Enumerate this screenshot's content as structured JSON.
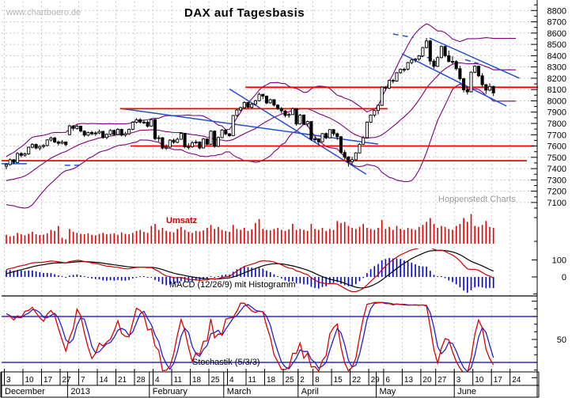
{
  "header": {
    "watermark": "www.chartbuero.de",
    "title": "DAX auf Tagesbasis",
    "provider": "Hoppenstedt Charts"
  },
  "labels": {
    "volume": "Umsatz",
    "macd": "MACD (12/26/9) mit Histogramm",
    "stochastic": "Stochastik (5/3/3)"
  },
  "colors": {
    "grid": "#c8c8c8",
    "band": "#800080",
    "trend": "#2250d0",
    "level_red": "#ff0000",
    "volume_bar": "#e00000",
    "macd_line": "#cc0000",
    "signal_line": "#000000",
    "histogram": "#0000cc",
    "stoch_k": "#dd0000",
    "stoch_d": "#2222cc",
    "stoch_level": "#0000cc",
    "candle_up": "#ffffff",
    "candle_down": "#000000"
  },
  "chart_data": {
    "type": "candlestick",
    "title": "DAX auf Tagesbasis",
    "y_tick_labels": [
      8800,
      8700,
      8600,
      8500,
      8400,
      8300,
      8200,
      8100,
      8000,
      7900,
      7800,
      7700,
      7600,
      7500,
      7400,
      7300,
      7200,
      7100
    ],
    "x_axis": {
      "weeks": [
        [
          "3",
          0
        ],
        [
          "10",
          5
        ],
        [
          "17",
          10
        ],
        [
          "27",
          15
        ],
        [
          "7",
          20
        ],
        [
          "14",
          25
        ],
        [
          "21",
          30
        ],
        [
          "28",
          35
        ],
        [
          "4",
          40
        ],
        [
          "11",
          45
        ],
        [
          "18",
          50
        ],
        [
          "25",
          55
        ],
        [
          "4",
          60
        ],
        [
          "11",
          65
        ],
        [
          "18",
          70
        ],
        [
          "25",
          75
        ],
        [
          "2",
          79
        ],
        [
          "8",
          83
        ],
        [
          "15",
          88
        ],
        [
          "22",
          93
        ],
        [
          "29",
          98
        ],
        [
          "6",
          102
        ],
        [
          "13",
          107
        ],
        [
          "20",
          112
        ],
        [
          "27",
          116
        ],
        [
          "3",
          121
        ],
        [
          "10",
          126
        ],
        [
          "17",
          131
        ],
        [
          "24",
          136
        ]
      ],
      "months": [
        [
          "December",
          -1.2
        ],
        [
          "2013",
          17
        ],
        [
          "February",
          39
        ],
        [
          "March",
          59
        ],
        [
          "April",
          79
        ],
        [
          "May",
          100
        ],
        [
          "June",
          121
        ]
      ]
    },
    "indicators": {
      "bollinger": {
        "period": 20,
        "stddev": 2
      },
      "macd": {
        "fast": 12,
        "slow": 26,
        "signal": 9,
        "axis_labels": [
          100,
          0
        ]
      },
      "stochastic": {
        "k": 5,
        "slow": 3,
        "d": 3,
        "upper_level": 80,
        "lower_level": 20,
        "axis_labels": [
          50
        ]
      }
    },
    "support_resistance": [
      {
        "price": 8120,
        "i1": 64.3,
        "i2": 143
      },
      {
        "price": 7930,
        "i1": 30.6,
        "i2": 102.5
      },
      {
        "price": 7600,
        "i1": 33.4,
        "i2": 142
      },
      {
        "price": 7470,
        "i1": -1.3,
        "i2": 140
      }
    ],
    "trend_lines": [
      {
        "i1": -1.3,
        "p1": 7443,
        "i2": 5.5,
        "p2": 7443,
        "d": 0
      },
      {
        "i1": 15.7,
        "p1": 7429,
        "i2": 19.6,
        "p2": 7429,
        "d": 1
      },
      {
        "i1": 30.6,
        "p1": 7933,
        "i2": 100,
        "p2": 7617,
        "d": 0
      },
      {
        "i1": 60.0,
        "p1": 8105,
        "i2": 96.8,
        "p2": 7350,
        "d": 0
      },
      {
        "i1": 113.8,
        "p1": 8557,
        "i2": 138,
        "p2": 8200,
        "d": 0
      },
      {
        "i1": 106.4,
        "p1": 8416,
        "i2": 134.5,
        "p2": 7954,
        "d": 0
      },
      {
        "i1": 104.0,
        "p1": 8592,
        "i2": 109.5,
        "p2": 8560,
        "d": 1
      },
      {
        "i1": 110.6,
        "p1": 8400,
        "i2": 114.3,
        "p2": 8378,
        "d": 1
      },
      {
        "i1": 123.4,
        "p1": 8365,
        "i2": 127.0,
        "p2": 8330,
        "d": 1
      }
    ],
    "pre_close": [
      7260,
      7326,
      7335,
      7364,
      7370,
      7290,
      7204,
      7127,
      7102,
      7123,
      7172,
      7184,
      7244,
      7290,
      7309,
      7332,
      7405,
      7398,
      7435,
      7420
    ],
    "ohlc": [
      [
        7420,
        7448,
        7395,
        7435
      ],
      [
        7435,
        7490,
        7425,
        7478
      ],
      [
        7478,
        7484,
        7440,
        7454
      ],
      [
        7454,
        7546,
        7450,
        7534
      ],
      [
        7534,
        7545,
        7500,
        7518
      ],
      [
        7518,
        7542,
        7505,
        7530
      ],
      [
        7530,
        7596,
        7522,
        7589
      ],
      [
        7589,
        7625,
        7580,
        7614
      ],
      [
        7614,
        7622,
        7570,
        7582
      ],
      [
        7582,
        7608,
        7562,
        7596
      ],
      [
        7596,
        7618,
        7580,
        7604
      ],
      [
        7604,
        7660,
        7596,
        7654
      ],
      [
        7654,
        7684,
        7640,
        7672
      ],
      [
        7672,
        7680,
        7625,
        7636
      ],
      [
        7636,
        7648,
        7605,
        7624
      ],
      [
        7624,
        7655,
        7615,
        7636
      ],
      [
        7636,
        7640,
        7598,
        7612
      ],
      [
        7700,
        7789,
        7695,
        7778
      ],
      [
        7778,
        7785,
        7735,
        7756
      ],
      [
        7756,
        7792,
        7745,
        7776
      ],
      [
        7776,
        7780,
        7720,
        7732
      ],
      [
        7732,
        7740,
        7680,
        7696
      ],
      [
        7696,
        7728,
        7685,
        7720
      ],
      [
        7720,
        7735,
        7695,
        7708
      ],
      [
        7708,
        7730,
        7690,
        7715
      ],
      [
        7715,
        7745,
        7705,
        7729
      ],
      [
        7729,
        7735,
        7665,
        7676
      ],
      [
        7676,
        7712,
        7660,
        7703
      ],
      [
        7703,
        7750,
        7695,
        7738
      ],
      [
        7738,
        7745,
        7690,
        7702
      ],
      [
        7702,
        7758,
        7698,
        7748
      ],
      [
        7748,
        7752,
        7685,
        7696
      ],
      [
        7696,
        7725,
        7680,
        7708
      ],
      [
        7708,
        7755,
        7700,
        7748
      ],
      [
        7748,
        7820,
        7740,
        7810
      ],
      [
        7810,
        7846,
        7798,
        7833
      ],
      [
        7833,
        7848,
        7800,
        7812
      ],
      [
        7812,
        7830,
        7795,
        7811
      ],
      [
        7811,
        7825,
        7765,
        7776
      ],
      [
        7776,
        7845,
        7770,
        7834
      ],
      [
        7834,
        7840,
        7650,
        7665
      ],
      [
        7665,
        7695,
        7640,
        7673
      ],
      [
        7673,
        7680,
        7570,
        7581
      ],
      [
        7581,
        7615,
        7565,
        7590
      ],
      [
        7590,
        7660,
        7585,
        7652
      ],
      [
        7652,
        7665,
        7620,
        7633
      ],
      [
        7633,
        7675,
        7625,
        7660
      ],
      [
        7660,
        7722,
        7655,
        7712
      ],
      [
        7712,
        7715,
        7580,
        7593
      ],
      [
        7593,
        7625,
        7570,
        7594
      ],
      [
        7594,
        7645,
        7585,
        7629
      ],
      [
        7629,
        7655,
        7615,
        7636
      ],
      [
        7636,
        7640,
        7570,
        7583
      ],
      [
        7583,
        7672,
        7578,
        7662
      ],
      [
        7662,
        7668,
        7605,
        7616
      ],
      [
        7616,
        7740,
        7610,
        7732
      ],
      [
        7732,
        7738,
        7585,
        7597
      ],
      [
        7597,
        7685,
        7590,
        7675
      ],
      [
        7675,
        7750,
        7670,
        7742
      ],
      [
        7742,
        7748,
        7695,
        7708
      ],
      [
        7708,
        7715,
        7680,
        7692
      ],
      [
        7692,
        7876,
        7690,
        7870
      ],
      [
        7870,
        7925,
        7860,
        7919
      ],
      [
        7919,
        7948,
        7905,
        7940
      ],
      [
        7940,
        7995,
        7930,
        7986
      ],
      [
        7986,
        7990,
        7935,
        7943
      ],
      [
        7943,
        7978,
        7930,
        7970
      ],
      [
        7970,
        8010,
        7960,
        8001
      ],
      [
        8001,
        8074,
        7995,
        8058
      ],
      [
        8058,
        8062,
        8015,
        8042
      ],
      [
        8042,
        8048,
        7970,
        7982
      ],
      [
        7982,
        8020,
        7975,
        8010
      ],
      [
        8010,
        8015,
        7950,
        7962
      ],
      [
        7962,
        7970,
        7920,
        7933
      ],
      [
        7933,
        7945,
        7890,
        7911
      ],
      [
        7911,
        7920,
        7855,
        7871
      ],
      [
        7871,
        7895,
        7850,
        7879
      ],
      [
        7879,
        7940,
        7875,
        7932
      ],
      [
        7932,
        7936,
        7780,
        7795
      ],
      [
        7795,
        7885,
        7790,
        7874
      ],
      [
        7874,
        7880,
        7785,
        7795
      ],
      [
        7795,
        7825,
        7770,
        7817
      ],
      [
        7817,
        7820,
        7645,
        7659
      ],
      [
        7659,
        7685,
        7635,
        7663
      ],
      [
        7663,
        7670,
        7610,
        7637
      ],
      [
        7637,
        7715,
        7630,
        7710
      ],
      [
        7710,
        7720,
        7660,
        7672
      ],
      [
        7672,
        7750,
        7668,
        7745
      ],
      [
        7745,
        7750,
        7690,
        7709
      ],
      [
        7709,
        7720,
        7655,
        7682
      ],
      [
        7682,
        7690,
        7530,
        7543
      ],
      [
        7543,
        7565,
        7480,
        7503
      ],
      [
        7503,
        7510,
        7418,
        7460
      ],
      [
        7460,
        7505,
        7430,
        7478
      ],
      [
        7478,
        7545,
        7470,
        7539
      ],
      [
        7539,
        7625,
        7535,
        7616
      ],
      [
        7616,
        7690,
        7610,
        7674
      ],
      [
        7674,
        7818,
        7670,
        7811
      ],
      [
        7811,
        7880,
        7805,
        7874
      ],
      [
        7874,
        7920,
        7855,
        7914
      ],
      [
        7914,
        7968,
        7880,
        7961
      ],
      [
        7961,
        8128,
        7955,
        8122
      ],
      [
        8122,
        8132,
        8090,
        8112
      ],
      [
        8112,
        8188,
        8105,
        8181
      ],
      [
        8181,
        8195,
        8155,
        8175
      ],
      [
        8175,
        8255,
        8170,
        8249
      ],
      [
        8249,
        8288,
        8240,
        8279
      ],
      [
        8279,
        8295,
        8255,
        8280
      ],
      [
        8280,
        8345,
        8270,
        8339
      ],
      [
        8339,
        8370,
        8325,
        8362
      ],
      [
        8362,
        8380,
        8340,
        8370
      ],
      [
        8370,
        8405,
        8355,
        8398
      ],
      [
        8398,
        8478,
        8390,
        8472
      ],
      [
        8472,
        8557,
        8465,
        8530
      ],
      [
        8530,
        8540,
        8320,
        8352
      ],
      [
        8352,
        8370,
        8285,
        8306
      ],
      [
        8306,
        8395,
        8300,
        8383
      ],
      [
        8383,
        8490,
        8375,
        8481
      ],
      [
        8481,
        8488,
        8385,
        8400
      ],
      [
        8400,
        8445,
        8340,
        8349
      ],
      [
        8349,
        8395,
        8325,
        8348
      ],
      [
        8348,
        8360,
        8270,
        8285
      ],
      [
        8285,
        8310,
        8180,
        8196
      ],
      [
        8196,
        8205,
        8075,
        8098
      ],
      [
        8098,
        8125,
        8055,
        8080
      ],
      [
        8080,
        8260,
        8075,
        8254
      ],
      [
        8254,
        8315,
        8245,
        8307
      ],
      [
        8307,
        8312,
        8210,
        8222
      ],
      [
        8222,
        8245,
        8120,
        8143
      ],
      [
        8143,
        8150,
        8060,
        8095
      ],
      [
        8095,
        8155,
        8085,
        8127
      ],
      [
        8127,
        8135,
        8042,
        8070
      ]
    ],
    "volume": [
      90,
      75,
      80,
      110,
      95,
      85,
      100,
      120,
      95,
      88,
      92,
      105,
      140,
      130,
      180,
      60,
      45,
      150,
      120,
      110,
      100,
      95,
      105,
      90,
      85,
      100,
      110,
      95,
      100,
      105,
      90,
      115,
      100,
      95,
      110,
      130,
      140,
      120,
      110,
      180,
      200,
      140,
      160,
      130,
      120,
      115,
      150,
      170,
      140,
      120,
      110,
      130,
      125,
      135,
      160,
      190,
      150,
      170,
      140,
      130,
      120,
      190,
      150,
      140,
      160,
      130,
      145,
      210,
      250,
      150,
      140,
      135,
      150,
      160,
      140,
      130,
      145,
      200,
      140,
      150,
      140,
      130,
      200,
      150,
      140,
      160,
      130,
      150,
      140,
      230,
      210,
      220,
      180,
      160,
      150,
      170,
      200,
      160,
      150,
      140,
      160,
      240,
      150,
      170,
      140,
      180,
      150,
      140,
      160,
      150,
      140,
      170,
      190,
      220,
      260,
      200,
      160,
      180,
      170,
      150,
      140,
      180,
      200,
      260,
      220,
      300,
      180,
      170,
      190,
      230,
      170,
      160
    ]
  }
}
